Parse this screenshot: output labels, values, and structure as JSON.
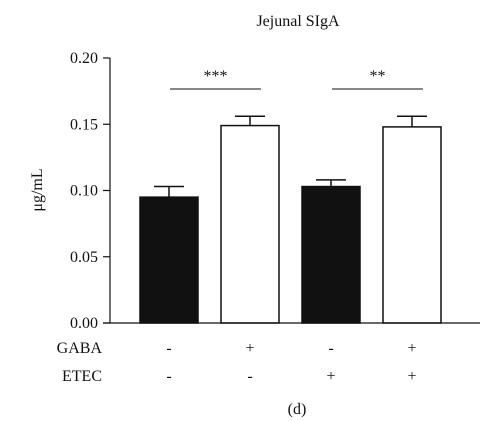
{
  "chart_data": {
    "type": "bar",
    "title": "Jejunal SIgA",
    "ylabel": "μg/mL",
    "xlabel": "",
    "ylim": [
      0,
      0.2
    ],
    "yticks": [
      "0.00",
      "0.05",
      "0.10",
      "0.15",
      "0.20"
    ],
    "y_tick_values": [
      0,
      0.05,
      0.1,
      0.15,
      0.2
    ],
    "bars": [
      {
        "value": 0.095,
        "error": 0.008,
        "fill": "#111111"
      },
      {
        "value": 0.149,
        "error": 0.007,
        "fill": "#ffffff"
      },
      {
        "value": 0.103,
        "error": 0.005,
        "fill": "#111111"
      },
      {
        "value": 0.148,
        "error": 0.008,
        "fill": "#ffffff"
      }
    ],
    "conditions": [
      {
        "label": "GABA",
        "values": [
          "-",
          "+",
          "-",
          "+"
        ]
      },
      {
        "label": "ETEC",
        "values": [
          "-",
          "-",
          "+",
          "+"
        ]
      }
    ],
    "significance": [
      {
        "bars": [
          0,
          1
        ],
        "label": "***"
      },
      {
        "bars": [
          2,
          3
        ],
        "label": "**"
      }
    ],
    "panel_label": "(d)",
    "colors": {
      "dark_bar": "#111111",
      "light_bar": "#ffffff",
      "axis": "#111111"
    }
  }
}
